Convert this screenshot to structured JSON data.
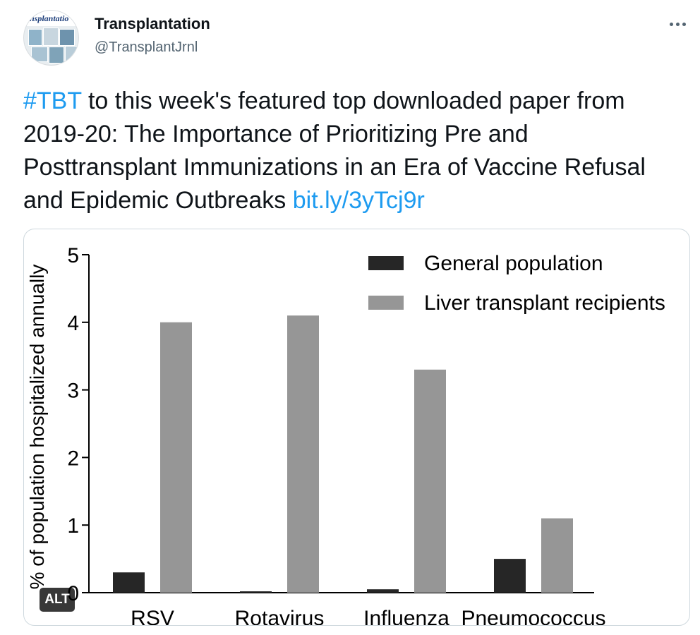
{
  "tweet": {
    "author": {
      "name": "Transplantation",
      "handle": "@TransplantJrnl",
      "avatar_text": "ansplantatio"
    },
    "hashtag": "#TBT",
    "text": " to this week's featured top downloaded paper from 2019-20: The Importance of Prioritizing Pre and Posttransplant Immunizations in an Era of Vaccine Refusal and Epidemic Outbreaks ",
    "link": "bit.ly/3yTcj9r",
    "alt_badge": "ALT"
  },
  "colors": {
    "link": "#1d9bf0",
    "general_population": "#262626",
    "liver_recipients": "#969696"
  },
  "icons": {
    "more": "more-icon"
  },
  "chart_data": {
    "type": "bar",
    "categories": [
      "RSV",
      "Rotavirus",
      "Influenza",
      "Pneumococcus"
    ],
    "series": [
      {
        "name": "General population",
        "values": [
          0.3,
          0.02,
          0.05,
          0.5
        ]
      },
      {
        "name": "Liver transplant recipients",
        "values": [
          4.0,
          4.1,
          3.3,
          1.1
        ]
      }
    ],
    "ylabel": "% of population hospitalized annually",
    "xlabel": "",
    "ylim": [
      0,
      5
    ],
    "yticks": [
      "0",
      "1",
      "2",
      "3",
      "4",
      "5"
    ],
    "legend": "top-right",
    "grid": false
  }
}
